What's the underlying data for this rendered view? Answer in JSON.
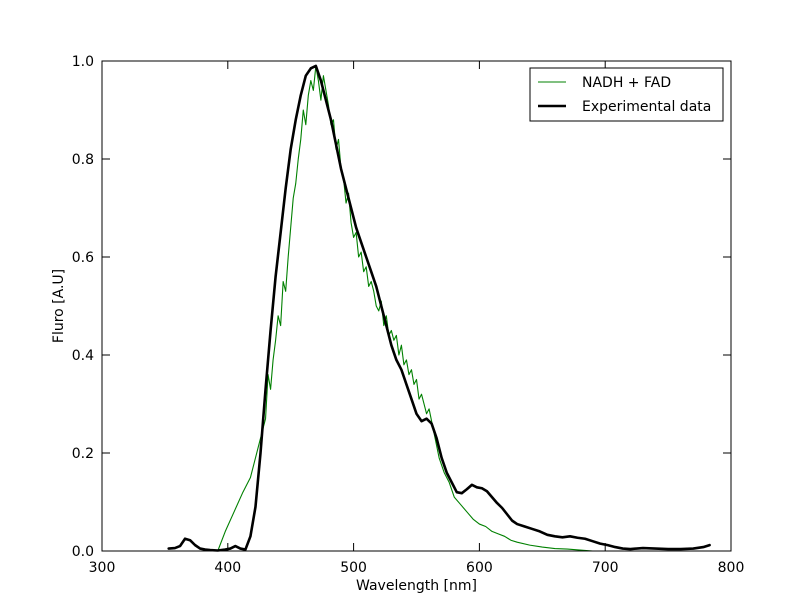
{
  "chart_data": {
    "type": "line",
    "title": "",
    "xlabel": "Wavelength [nm]",
    "ylabel": "Fluro [A.U]",
    "xlim": [
      300,
      800
    ],
    "ylim": [
      0.0,
      1.0
    ],
    "xticks": [
      300,
      400,
      500,
      600,
      700,
      800
    ],
    "xtick_labels": [
      "300",
      "400",
      "500",
      "600",
      "700",
      "800"
    ],
    "yticks": [
      0.0,
      0.2,
      0.4,
      0.6,
      0.8,
      1.0
    ],
    "ytick_labels": [
      "0.0",
      "0.2",
      "0.4",
      "0.6",
      "0.8",
      "1.0"
    ],
    "grid": false,
    "legend_position": "top-right",
    "series": [
      {
        "name": "NADH + FAD",
        "color": "#008000",
        "line_width": "thin",
        "x": [
          300,
          392,
          398,
          405,
          412,
          418,
          422,
          426,
          430,
          432,
          434,
          436,
          438,
          440,
          442,
          444,
          446,
          448,
          450,
          452,
          454,
          456,
          458,
          460,
          462,
          464,
          466,
          468,
          470,
          472,
          474,
          476,
          478,
          480,
          482,
          484,
          486,
          488,
          490,
          492,
          494,
          496,
          498,
          500,
          502,
          504,
          506,
          508,
          510,
          512,
          514,
          516,
          518,
          520,
          522,
          524,
          526,
          528,
          530,
          532,
          534,
          536,
          538,
          540,
          542,
          544,
          546,
          548,
          550,
          552,
          554,
          556,
          558,
          560,
          564,
          568,
          572,
          576,
          580,
          585,
          590,
          595,
          600,
          605,
          610,
          615,
          620,
          625,
          630,
          640,
          650,
          660,
          670,
          680,
          690,
          700,
          720,
          740,
          760,
          780,
          800
        ],
        "y": [
          0.0,
          0.0,
          0.04,
          0.08,
          0.12,
          0.15,
          0.19,
          0.23,
          0.27,
          0.36,
          0.33,
          0.39,
          0.43,
          0.48,
          0.46,
          0.55,
          0.53,
          0.6,
          0.66,
          0.72,
          0.75,
          0.8,
          0.84,
          0.9,
          0.87,
          0.93,
          0.96,
          0.94,
          0.99,
          0.96,
          0.92,
          0.97,
          0.94,
          0.91,
          0.87,
          0.88,
          0.82,
          0.84,
          0.78,
          0.76,
          0.71,
          0.73,
          0.67,
          0.64,
          0.65,
          0.6,
          0.61,
          0.57,
          0.58,
          0.54,
          0.55,
          0.53,
          0.5,
          0.49,
          0.51,
          0.46,
          0.48,
          0.44,
          0.45,
          0.43,
          0.44,
          0.4,
          0.42,
          0.38,
          0.39,
          0.36,
          0.37,
          0.34,
          0.35,
          0.31,
          0.32,
          0.3,
          0.28,
          0.29,
          0.24,
          0.19,
          0.16,
          0.14,
          0.11,
          0.095,
          0.08,
          0.065,
          0.055,
          0.05,
          0.04,
          0.035,
          0.03,
          0.022,
          0.018,
          0.012,
          0.008,
          0.005,
          0.004,
          0.002,
          0.0,
          0.0,
          0.0,
          0.0,
          0.0,
          0.0,
          0.0
        ]
      },
      {
        "name": "Experimental data",
        "color": "#000000",
        "line_width": "thick",
        "x": [
          353,
          358,
          362,
          366,
          370,
          374,
          378,
          382,
          386,
          392,
          398,
          402,
          406,
          410,
          414,
          418,
          422,
          426,
          430,
          434,
          438,
          442,
          446,
          450,
          454,
          458,
          462,
          466,
          470,
          474,
          478,
          482,
          486,
          490,
          494,
          498,
          502,
          506,
          510,
          514,
          518,
          522,
          526,
          530,
          534,
          538,
          542,
          546,
          550,
          554,
          558,
          562,
          566,
          570,
          574,
          578,
          582,
          586,
          590,
          594,
          598,
          602,
          606,
          610,
          614,
          618,
          622,
          626,
          630,
          636,
          642,
          648,
          654,
          660,
          666,
          672,
          678,
          684,
          690,
          696,
          702,
          708,
          714,
          720,
          730,
          740,
          750,
          760,
          770,
          778,
          783
        ],
        "y": [
          0.005,
          0.006,
          0.01,
          0.025,
          0.022,
          0.012,
          0.005,
          0.003,
          0.002,
          0.001,
          0.003,
          0.005,
          0.01,
          0.005,
          0.003,
          0.03,
          0.09,
          0.2,
          0.33,
          0.45,
          0.56,
          0.65,
          0.74,
          0.82,
          0.88,
          0.93,
          0.97,
          0.985,
          0.99,
          0.96,
          0.92,
          0.88,
          0.83,
          0.78,
          0.74,
          0.7,
          0.66,
          0.63,
          0.6,
          0.57,
          0.54,
          0.5,
          0.46,
          0.42,
          0.39,
          0.37,
          0.34,
          0.31,
          0.28,
          0.265,
          0.27,
          0.26,
          0.23,
          0.19,
          0.16,
          0.14,
          0.12,
          0.118,
          0.126,
          0.135,
          0.13,
          0.128,
          0.122,
          0.11,
          0.098,
          0.088,
          0.075,
          0.062,
          0.055,
          0.05,
          0.045,
          0.04,
          0.033,
          0.03,
          0.028,
          0.03,
          0.027,
          0.025,
          0.02,
          0.015,
          0.012,
          0.008,
          0.005,
          0.004,
          0.006,
          0.005,
          0.004,
          0.004,
          0.005,
          0.008,
          0.012
        ]
      }
    ]
  }
}
